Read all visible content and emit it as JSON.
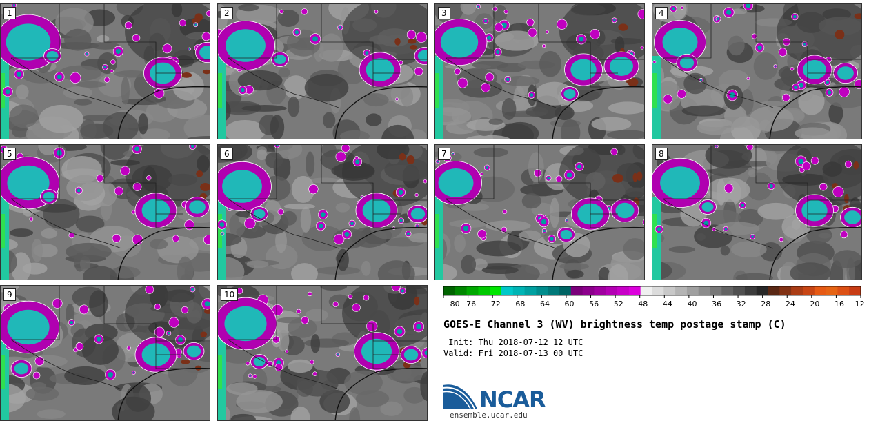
{
  "panels": [
    {
      "label": "1",
      "seed": 11,
      "storms": [
        [
          40,
          55,
          38
        ],
        [
          235,
          100,
          22
        ],
        [
          300,
          70,
          14
        ],
        [
          75,
          75,
          10
        ]
      ]
    },
    {
      "label": "2",
      "seed": 23,
      "storms": [
        [
          40,
          60,
          34
        ],
        [
          235,
          95,
          24
        ],
        [
          300,
          75,
          12
        ],
        [
          90,
          80,
          10
        ]
      ]
    },
    {
      "label": "3",
      "seed": 37,
      "storms": [
        [
          35,
          55,
          32
        ],
        [
          215,
          95,
          22
        ],
        [
          270,
          90,
          20
        ],
        [
          195,
          130,
          10
        ]
      ]
    },
    {
      "label": "4",
      "seed": 41,
      "storms": [
        [
          40,
          55,
          30
        ],
        [
          235,
          95,
          20
        ],
        [
          280,
          100,
          14
        ],
        [
          50,
          85,
          12
        ]
      ]
    },
    {
      "label": "5",
      "seed": 53,
      "storms": [
        [
          40,
          55,
          36
        ],
        [
          225,
          95,
          24
        ],
        [
          285,
          90,
          14
        ],
        [
          70,
          75,
          10
        ]
      ]
    },
    {
      "label": "6",
      "seed": 67,
      "storms": [
        [
          35,
          60,
          34
        ],
        [
          230,
          95,
          24
        ],
        [
          290,
          100,
          12
        ],
        [
          60,
          100,
          10
        ]
      ]
    },
    {
      "label": "7",
      "seed": 79,
      "storms": [
        [
          30,
          55,
          30
        ],
        [
          225,
          100,
          22
        ],
        [
          275,
          95,
          16
        ],
        [
          190,
          130,
          10
        ]
      ]
    },
    {
      "label": "8",
      "seed": 83,
      "storms": [
        [
          40,
          55,
          34
        ],
        [
          235,
          95,
          22
        ],
        [
          290,
          105,
          14
        ],
        [
          80,
          90,
          10
        ]
      ]
    },
    {
      "label": "9",
      "seed": 97,
      "storms": [
        [
          40,
          60,
          36
        ],
        [
          225,
          100,
          24
        ],
        [
          280,
          95,
          12
        ],
        [
          30,
          120,
          12
        ]
      ]
    },
    {
      "label": "10",
      "seed": 103,
      "storms": [
        [
          40,
          55,
          36
        ],
        [
          230,
          95,
          26
        ],
        [
          280,
          100,
          12
        ],
        [
          60,
          110,
          10
        ]
      ]
    }
  ],
  "colorbar": {
    "colors": [
      "#006400",
      "#008700",
      "#00a800",
      "#00c800",
      "#00e600",
      "#00c8c8",
      "#00b4b4",
      "#00a0a0",
      "#008c8c",
      "#007878",
      "#006464",
      "#7a007a",
      "#8c008c",
      "#a000a0",
      "#b400b4",
      "#c800c8",
      "#dc00dc",
      "#f0f0f0",
      "#dcdcdc",
      "#c8c8c8",
      "#b4b4b4",
      "#a0a0a0",
      "#8c8c8c",
      "#787878",
      "#646464",
      "#505050",
      "#3c3c3c",
      "#282828",
      "#5a2814",
      "#823214",
      "#aa3c14",
      "#c84614",
      "#e65a14",
      "#e66414",
      "#dc5014",
      "#c83c14"
    ],
    "ticks": [
      "−80",
      "−76",
      "−72",
      "−68",
      "−64",
      "−60",
      "−56",
      "−52",
      "−48",
      "−44",
      "−40",
      "−36",
      "−32",
      "−28",
      "−24",
      "−20",
      "−16",
      "−12"
    ]
  },
  "title": "GOES-E Channel 3 (WV) brightness temp postage stamp (C)",
  "init_line": " Init: Thu 2018-07-12 12 UTC",
  "valid_line": "Valid: Fri 2018-07-13 00 UTC",
  "logo_text": "NCAR",
  "url": "ensemble.ucar.edu"
}
